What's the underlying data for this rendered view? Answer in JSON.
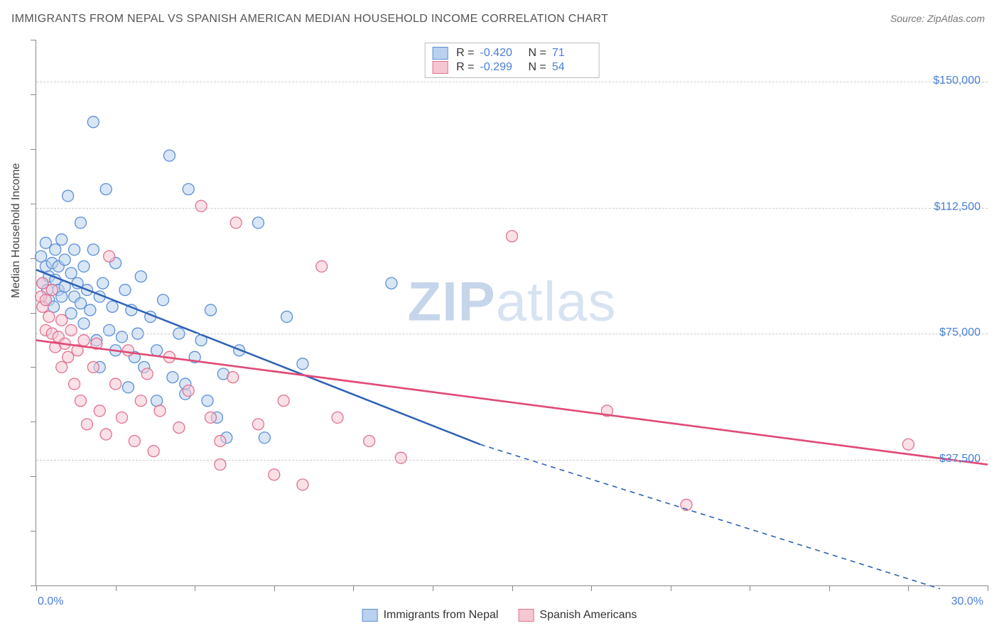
{
  "title": "IMMIGRANTS FROM NEPAL VS SPANISH AMERICAN MEDIAN HOUSEHOLD INCOME CORRELATION CHART",
  "source": "Source: ZipAtlas.com",
  "ylabel": "Median Household Income",
  "watermark_part1": "ZIP",
  "watermark_part2": "atlas",
  "chart": {
    "type": "scatter",
    "background_color": "#ffffff",
    "grid_color": "#cccccc",
    "axis_color": "#888888",
    "text_color": "#444444",
    "value_color": "#4a7fd6",
    "xlim": [
      0,
      30
    ],
    "ylim": [
      0,
      162500
    ],
    "y_ticks": [
      37500,
      75000,
      112500,
      150000
    ],
    "y_tick_labels": [
      "$37,500",
      "$75,000",
      "$112,500",
      "$150,000"
    ],
    "x_tick_labels": {
      "left": "0.0%",
      "right": "30.0%"
    },
    "marker_radius": 8,
    "marker_stroke_width": 1.3,
    "trend_line_width": 2.5,
    "series": [
      {
        "name": "Immigrants from Nepal",
        "fill": "#b9d1ee",
        "stroke": "#5a8fd6",
        "line_color": "#2e62b4",
        "fill_opacity": 0.55,
        "r_value": "-0.420",
        "n_value": "71",
        "trend": {
          "x1": 0,
          "y1": 94000,
          "x2": 14,
          "y2": 42000,
          "x2_ext": 28.5,
          "y2_ext": -1000,
          "dashed_after_x": 14
        },
        "points": [
          [
            0.15,
            98000
          ],
          [
            0.2,
            90000
          ],
          [
            0.3,
            95000
          ],
          [
            0.35,
            88000
          ],
          [
            0.3,
            102000
          ],
          [
            0.4,
            92000
          ],
          [
            0.4,
            85000
          ],
          [
            0.5,
            96000
          ],
          [
            0.55,
            83000
          ],
          [
            0.6,
            100000
          ],
          [
            0.6,
            91000
          ],
          [
            0.7,
            88000
          ],
          [
            0.7,
            95000
          ],
          [
            0.8,
            86000
          ],
          [
            0.8,
            103000
          ],
          [
            0.9,
            89000
          ],
          [
            0.9,
            97000
          ],
          [
            1.0,
            116000
          ],
          [
            1.1,
            93000
          ],
          [
            1.1,
            81000
          ],
          [
            1.2,
            86000
          ],
          [
            1.2,
            100000
          ],
          [
            1.3,
            90000
          ],
          [
            1.4,
            108000
          ],
          [
            1.4,
            84000
          ],
          [
            1.5,
            78000
          ],
          [
            1.5,
            95000
          ],
          [
            1.6,
            88000
          ],
          [
            1.7,
            82000
          ],
          [
            1.8,
            100000
          ],
          [
            1.8,
            138000
          ],
          [
            1.9,
            73000
          ],
          [
            2.0,
            86000
          ],
          [
            2.0,
            65000
          ],
          [
            2.1,
            90000
          ],
          [
            2.2,
            118000
          ],
          [
            2.3,
            76000
          ],
          [
            2.4,
            83000
          ],
          [
            2.5,
            96000
          ],
          [
            2.5,
            70000
          ],
          [
            2.7,
            74000
          ],
          [
            2.8,
            88000
          ],
          [
            2.9,
            59000
          ],
          [
            3.0,
            82000
          ],
          [
            3.1,
            68000
          ],
          [
            3.2,
            75000
          ],
          [
            3.3,
            92000
          ],
          [
            3.4,
            65000
          ],
          [
            3.6,
            80000
          ],
          [
            3.8,
            70000
          ],
          [
            3.8,
            55000
          ],
          [
            4.0,
            85000
          ],
          [
            4.2,
            128000
          ],
          [
            4.3,
            62000
          ],
          [
            4.5,
            75000
          ],
          [
            4.7,
            57000
          ],
          [
            4.7,
            60000
          ],
          [
            4.8,
            118000
          ],
          [
            5.0,
            68000
          ],
          [
            5.2,
            73000
          ],
          [
            5.4,
            55000
          ],
          [
            5.5,
            82000
          ],
          [
            5.7,
            50000
          ],
          [
            5.9,
            63000
          ],
          [
            6.0,
            44000
          ],
          [
            6.4,
            70000
          ],
          [
            7.0,
            108000
          ],
          [
            7.2,
            44000
          ],
          [
            7.9,
            80000
          ],
          [
            8.4,
            66000
          ],
          [
            11.2,
            90000
          ]
        ]
      },
      {
        "name": "Spanish Americans",
        "fill": "#f5c7d3",
        "stroke": "#e0728f",
        "line_color": "#e14b77",
        "fill_opacity": 0.55,
        "r_value": "-0.299",
        "n_value": "54",
        "trend": {
          "x1": 0,
          "y1": 73000,
          "x2": 30,
          "y2": 36000,
          "dashed_after_x": 30
        },
        "points": [
          [
            0.15,
            86000
          ],
          [
            0.2,
            90000
          ],
          [
            0.2,
            83000
          ],
          [
            0.3,
            85000
          ],
          [
            0.3,
            76000
          ],
          [
            0.4,
            80000
          ],
          [
            0.5,
            88000
          ],
          [
            0.5,
            75000
          ],
          [
            0.6,
            71000
          ],
          [
            0.7,
            74000
          ],
          [
            0.8,
            79000
          ],
          [
            0.8,
            65000
          ],
          [
            0.9,
            72000
          ],
          [
            1.0,
            68000
          ],
          [
            1.1,
            76000
          ],
          [
            1.2,
            60000
          ],
          [
            1.3,
            70000
          ],
          [
            1.4,
            55000
          ],
          [
            1.5,
            73000
          ],
          [
            1.6,
            48000
          ],
          [
            1.8,
            65000
          ],
          [
            1.9,
            72000
          ],
          [
            2.0,
            52000
          ],
          [
            2.2,
            45000
          ],
          [
            2.3,
            98000
          ],
          [
            2.5,
            60000
          ],
          [
            2.7,
            50000
          ],
          [
            2.9,
            70000
          ],
          [
            3.1,
            43000
          ],
          [
            3.3,
            55000
          ],
          [
            3.5,
            63000
          ],
          [
            3.7,
            40000
          ],
          [
            3.9,
            52000
          ],
          [
            4.2,
            68000
          ],
          [
            4.5,
            47000
          ],
          [
            4.8,
            58000
          ],
          [
            5.2,
            113000
          ],
          [
            5.5,
            50000
          ],
          [
            5.8,
            36000
          ],
          [
            5.8,
            43000
          ],
          [
            6.2,
            62000
          ],
          [
            6.3,
            108000
          ],
          [
            7.0,
            48000
          ],
          [
            7.5,
            33000
          ],
          [
            7.8,
            55000
          ],
          [
            8.4,
            30000
          ],
          [
            9.0,
            95000
          ],
          [
            9.5,
            50000
          ],
          [
            10.5,
            43000
          ],
          [
            11.5,
            38000
          ],
          [
            15.0,
            104000
          ],
          [
            18.0,
            52000
          ],
          [
            20.5,
            24000
          ],
          [
            27.5,
            42000
          ]
        ]
      }
    ]
  },
  "bottom_legend": [
    {
      "label": "Immigrants from Nepal",
      "fill": "#b9d1ee",
      "stroke": "#5a8fd6"
    },
    {
      "label": "Spanish Americans",
      "fill": "#f5c7d3",
      "stroke": "#e0728f"
    }
  ]
}
